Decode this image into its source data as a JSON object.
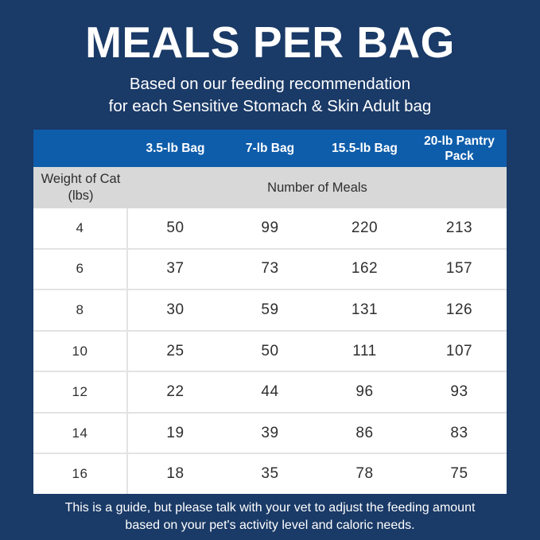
{
  "page": {
    "title": "MEALS PER BAG",
    "subtitle_line1": "Based on our feeding recommendation",
    "subtitle_line2": "for each Sensitive Stomach & Skin Adult bag",
    "footnote_line1": "This is a guide, but please talk with your vet to adjust the feeding amount",
    "footnote_line2": "based on your pet's activity level and caloric needs."
  },
  "colors": {
    "background_navy": "#1a3a67",
    "header_blue": "#0e5dab",
    "subheader_gray": "#d8d8d8",
    "row_divider_gray": "#e3e3e3",
    "cell_text": "#2f2f2f",
    "white": "#ffffff"
  },
  "table": {
    "bag_columns": [
      "3.5-lb Bag",
      "7-lb Bag",
      "15.5-lb Bag",
      "20-lb Pantry Pack"
    ],
    "weight_header_line1": "Weight of Cat",
    "weight_header_line2": "(lbs)",
    "meals_header": "Number of Meals",
    "rows": [
      {
        "weight": "4",
        "values": [
          "50",
          "99",
          "220",
          "213"
        ]
      },
      {
        "weight": "6",
        "values": [
          "37",
          "73",
          "162",
          "157"
        ]
      },
      {
        "weight": "8",
        "values": [
          "30",
          "59",
          "131",
          "126"
        ]
      },
      {
        "weight": "10",
        "values": [
          "25",
          "50",
          "111",
          "107"
        ]
      },
      {
        "weight": "12",
        "values": [
          "22",
          "44",
          "96",
          "93"
        ]
      },
      {
        "weight": "14",
        "values": [
          "19",
          "39",
          "86",
          "83"
        ]
      },
      {
        "weight": "16",
        "values": [
          "18",
          "35",
          "78",
          "75"
        ]
      }
    ]
  },
  "chart_data": {
    "type": "table",
    "title": "MEALS PER BAG",
    "subtitle": "Based on our feeding recommendation for each Sensitive Stomach & Skin Adult bag",
    "columns": [
      "Weight of Cat (lbs)",
      "3.5-lb Bag",
      "7-lb Bag",
      "15.5-lb Bag",
      "20-lb Pantry Pack"
    ],
    "value_unit": "Number of Meals",
    "rows": [
      [
        4,
        50,
        99,
        220,
        213
      ],
      [
        6,
        37,
        73,
        162,
        157
      ],
      [
        8,
        30,
        59,
        131,
        126
      ],
      [
        10,
        25,
        50,
        111,
        107
      ],
      [
        12,
        22,
        44,
        96,
        93
      ],
      [
        14,
        19,
        39,
        86,
        83
      ],
      [
        16,
        18,
        35,
        78,
        75
      ]
    ],
    "footnote": "This is a guide, but please talk with your vet to adjust the feeding amount based on your pet's activity level and caloric needs."
  }
}
